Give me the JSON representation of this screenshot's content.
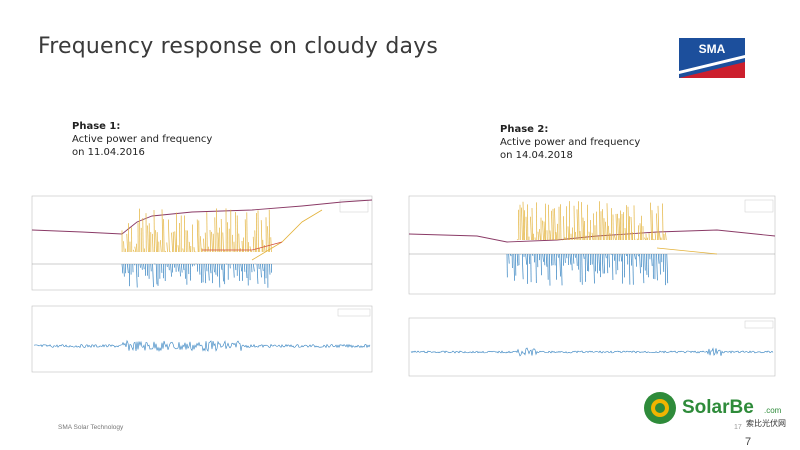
{
  "slide": {
    "title": "Frequency response on cloudy days",
    "footer": "SMA Solar Technology",
    "page_small": "17",
    "page_number": "7"
  },
  "brand": {
    "logo_text": "SMA",
    "logo_color": "#cc1f2d",
    "logo_blue": "#1c4f9c",
    "watermark_text": "SolarBe",
    "watermark_suffix": ".com",
    "watermark_sub": "索比光伏网",
    "watermark_green": "#2e8b3a",
    "watermark_yellow": "#f0b400"
  },
  "phase1": {
    "heading": "Phase 1:",
    "line1": "Active power and frequency",
    "line2": "on 11.04.2016"
  },
  "phase2": {
    "heading": "Phase 2:",
    "line1": "Active power and frequency",
    "line2": "on 14.04.2018"
  },
  "colors": {
    "frequency": "#8a3a66",
    "power_yellow": "#e3b23a",
    "power_blue": "#2f7fbf",
    "baseline_red": "#d24b3a"
  }
}
